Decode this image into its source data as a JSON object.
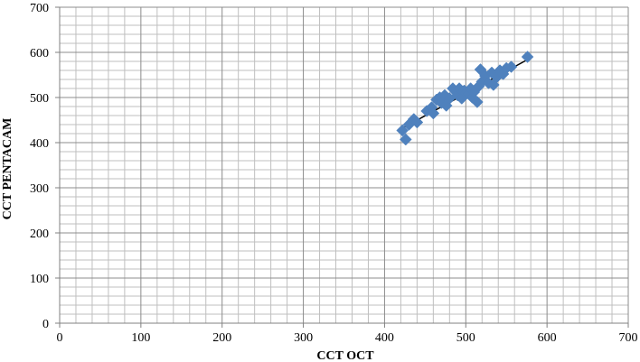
{
  "chart_data": {
    "type": "scatter",
    "title": "",
    "xlabel": "CCT OCT",
    "ylabel": "CCT PENTACAM",
    "xlim": [
      0,
      700
    ],
    "ylim": [
      0,
      700
    ],
    "xticks": [
      0,
      100,
      200,
      300,
      400,
      500,
      600,
      700
    ],
    "yticks": [
      0,
      100,
      200,
      300,
      400,
      500,
      600,
      700
    ],
    "major_grid": true,
    "minor_grid": true,
    "legend": "none",
    "marker": "diamond",
    "marker_color": "#4F81BD",
    "trendline": {
      "type": "linear",
      "color": "#000000",
      "x_range": [
        422,
        575
      ],
      "y_at_start": 432,
      "y_at_end": 583
    },
    "points": [
      {
        "x": 422,
        "y": 427
      },
      {
        "x": 426,
        "y": 407
      },
      {
        "x": 430,
        "y": 440
      },
      {
        "x": 436,
        "y": 452
      },
      {
        "x": 440,
        "y": 445
      },
      {
        "x": 452,
        "y": 470
      },
      {
        "x": 458,
        "y": 478
      },
      {
        "x": 460,
        "y": 465
      },
      {
        "x": 464,
        "y": 495
      },
      {
        "x": 468,
        "y": 500
      },
      {
        "x": 470,
        "y": 488
      },
      {
        "x": 474,
        "y": 505
      },
      {
        "x": 476,
        "y": 482
      },
      {
        "x": 480,
        "y": 498
      },
      {
        "x": 484,
        "y": 520
      },
      {
        "x": 488,
        "y": 512
      },
      {
        "x": 490,
        "y": 505
      },
      {
        "x": 492,
        "y": 520
      },
      {
        "x": 495,
        "y": 498
      },
      {
        "x": 498,
        "y": 515
      },
      {
        "x": 500,
        "y": 510
      },
      {
        "x": 504,
        "y": 508
      },
      {
        "x": 506,
        "y": 520
      },
      {
        "x": 508,
        "y": 500
      },
      {
        "x": 510,
        "y": 512
      },
      {
        "x": 514,
        "y": 490
      },
      {
        "x": 516,
        "y": 525
      },
      {
        "x": 518,
        "y": 562
      },
      {
        "x": 520,
        "y": 535
      },
      {
        "x": 524,
        "y": 548
      },
      {
        "x": 528,
        "y": 532
      },
      {
        "x": 532,
        "y": 555
      },
      {
        "x": 534,
        "y": 528
      },
      {
        "x": 538,
        "y": 545
      },
      {
        "x": 542,
        "y": 560
      },
      {
        "x": 546,
        "y": 552
      },
      {
        "x": 550,
        "y": 565
      },
      {
        "x": 556,
        "y": 568
      },
      {
        "x": 576,
        "y": 590
      }
    ]
  }
}
